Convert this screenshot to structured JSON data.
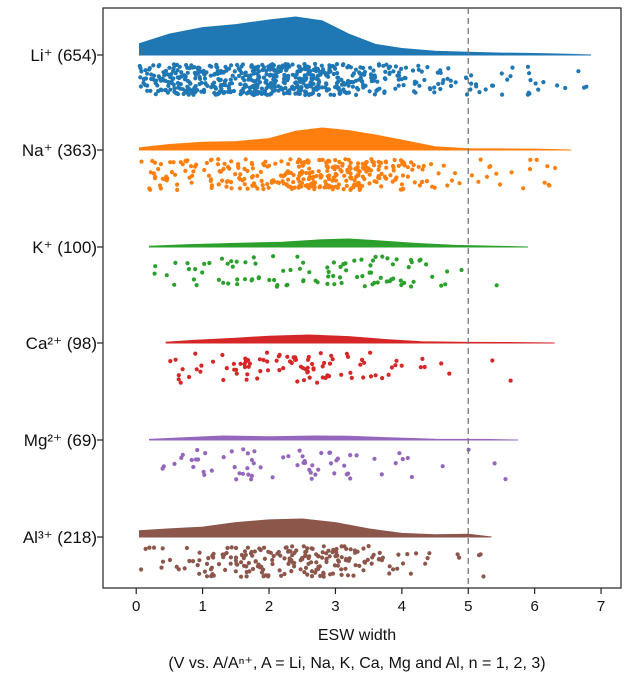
{
  "chart_data": {
    "type": "raincloud",
    "orientation": "horizontal",
    "xlabel": "ESW width",
    "xlabel_line2": "(V vs. A/Aⁿ⁺, A = Li, Na, K, Ca, Mg and Al, n = 1, 2, 3)",
    "xlim": [
      -0.5,
      7.3
    ],
    "xticks": [
      0,
      1,
      2,
      3,
      4,
      5,
      6,
      7
    ],
    "reference_line_x": 5,
    "grid": false,
    "legend": "none",
    "series": [
      {
        "name": "Li",
        "label": "Li⁺ (654)",
        "count": 654,
        "color": "#1f77b4",
        "min": 0.05,
        "max": 6.85,
        "density": [
          [
            0.05,
            0.3
          ],
          [
            0.5,
            0.55
          ],
          [
            1.0,
            0.72
          ],
          [
            1.5,
            0.8
          ],
          [
            2.0,
            0.92
          ],
          [
            2.4,
            1.0
          ],
          [
            2.8,
            0.9
          ],
          [
            3.2,
            0.55
          ],
          [
            3.6,
            0.28
          ],
          [
            4.0,
            0.17
          ],
          [
            4.5,
            0.1
          ],
          [
            5.0,
            0.07
          ],
          [
            5.5,
            0.05
          ],
          [
            6.0,
            0.04
          ],
          [
            6.5,
            0.02
          ],
          [
            6.85,
            0.0
          ]
        ]
      },
      {
        "name": "Na",
        "label": "Na⁺ (363)",
        "count": 363,
        "color": "#ff7f0e",
        "min": 0.05,
        "max": 6.55,
        "density": [
          [
            0.05,
            0.1
          ],
          [
            0.5,
            0.25
          ],
          [
            1.0,
            0.35
          ],
          [
            1.5,
            0.38
          ],
          [
            2.0,
            0.52
          ],
          [
            2.4,
            0.85
          ],
          [
            2.8,
            1.0
          ],
          [
            3.2,
            0.88
          ],
          [
            3.6,
            0.68
          ],
          [
            4.0,
            0.45
          ],
          [
            4.5,
            0.15
          ],
          [
            5.0,
            0.06
          ],
          [
            5.5,
            0.05
          ],
          [
            6.0,
            0.04
          ],
          [
            6.55,
            0.0
          ]
        ]
      },
      {
        "name": "K",
        "label": "K⁺ (100)",
        "count": 100,
        "color": "#2ca02c",
        "min": 0.2,
        "max": 5.9,
        "density": [
          [
            0.2,
            0.1
          ],
          [
            0.8,
            0.3
          ],
          [
            1.5,
            0.45
          ],
          [
            2.2,
            0.6
          ],
          [
            2.8,
            0.9
          ],
          [
            3.2,
            1.0
          ],
          [
            3.6,
            0.8
          ],
          [
            4.2,
            0.45
          ],
          [
            4.8,
            0.2
          ],
          [
            5.4,
            0.1
          ],
          [
            5.9,
            0.0
          ]
        ]
      },
      {
        "name": "Ca",
        "label": "Ca²⁺ (98)",
        "count": 98,
        "color": "#d62728",
        "min": 0.45,
        "max": 6.3,
        "density": [
          [
            0.45,
            0.1
          ],
          [
            0.9,
            0.35
          ],
          [
            1.5,
            0.6
          ],
          [
            2.0,
            0.85
          ],
          [
            2.6,
            1.0
          ],
          [
            3.2,
            0.8
          ],
          [
            3.8,
            0.4
          ],
          [
            4.3,
            0.15
          ],
          [
            5.0,
            0.08
          ],
          [
            5.8,
            0.05
          ],
          [
            6.3,
            0.0
          ]
        ]
      },
      {
        "name": "Mg",
        "label": "Mg²⁺ (69)",
        "count": 69,
        "color": "#9467bd",
        "min": 0.2,
        "max": 5.75,
        "density": [
          [
            0.2,
            0.15
          ],
          [
            0.8,
            0.5
          ],
          [
            1.3,
            0.8
          ],
          [
            2.0,
            0.65
          ],
          [
            2.7,
            0.8
          ],
          [
            3.2,
            0.75
          ],
          [
            3.8,
            0.45
          ],
          [
            4.5,
            0.15
          ],
          [
            5.2,
            0.12
          ],
          [
            5.75,
            0.0
          ]
        ]
      },
      {
        "name": "Al",
        "label": "Al³⁺ (218)",
        "count": 218,
        "color": "#8c564b",
        "min": 0.05,
        "max": 5.35,
        "density": [
          [
            0.05,
            0.35
          ],
          [
            0.5,
            0.45
          ],
          [
            1.0,
            0.55
          ],
          [
            1.5,
            0.8
          ],
          [
            2.0,
            0.95
          ],
          [
            2.5,
            1.0
          ],
          [
            3.0,
            0.8
          ],
          [
            3.5,
            0.45
          ],
          [
            4.0,
            0.2
          ],
          [
            4.5,
            0.12
          ],
          [
            5.0,
            0.15
          ],
          [
            5.35,
            0.0
          ]
        ]
      }
    ]
  }
}
